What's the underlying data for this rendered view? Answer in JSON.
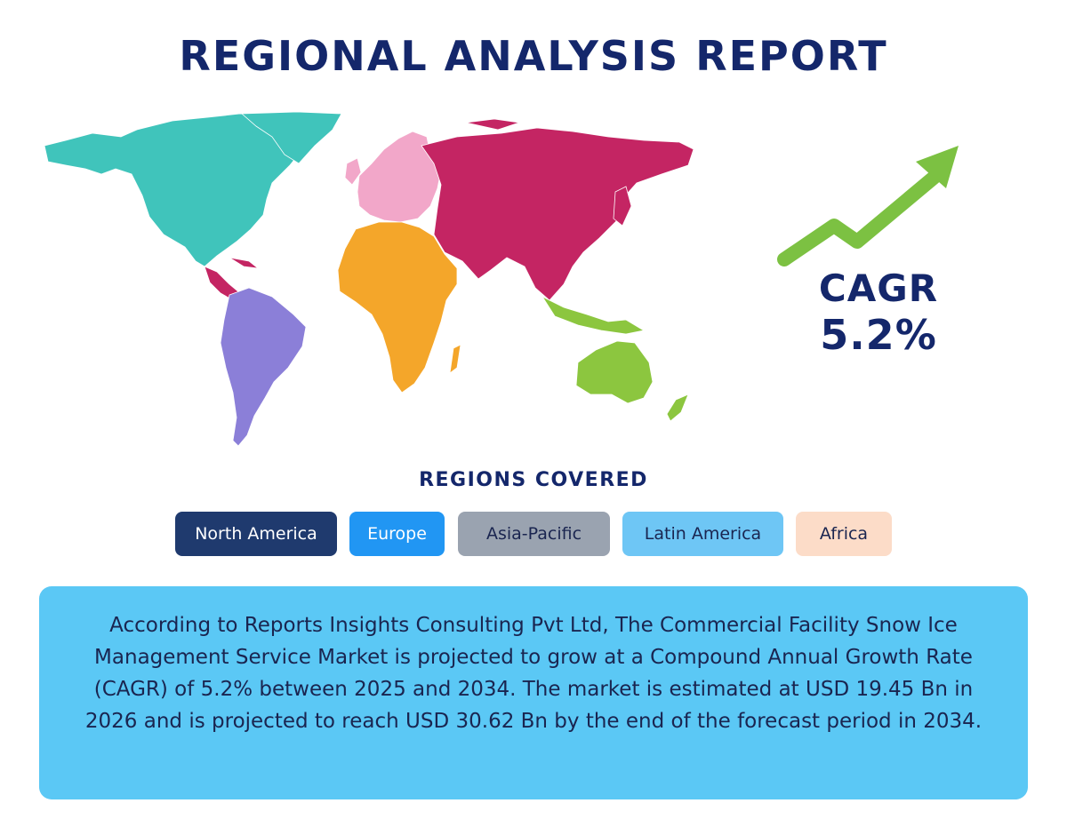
{
  "title": "REGIONAL ANALYSIS REPORT",
  "map": {
    "colors": {
      "north_america": "#40c4bb",
      "europe": "#f2a7c9",
      "asia": "#c42563",
      "africa": "#f4a62a",
      "latin_america": "#8b7fd8",
      "oceania": "#8cc63f"
    }
  },
  "cagr": {
    "label": "CAGR",
    "value": "5.2%",
    "arrow_color": "#7cc142"
  },
  "regions": {
    "heading": "REGIONS COVERED",
    "items": [
      {
        "label": "North America",
        "bg": "#1f3a6e",
        "fg": "#ffffff"
      },
      {
        "label": "Europe",
        "bg": "#2196f3",
        "fg": "#ffffff"
      },
      {
        "label": "Asia-Pacific",
        "bg": "#9aa3b0",
        "fg": "#1a2550"
      },
      {
        "label": "Latin America",
        "bg": "#6ec6f5",
        "fg": "#1a2550"
      },
      {
        "label": "Africa",
        "bg": "#fcdcc8",
        "fg": "#1a2550"
      }
    ]
  },
  "summary": {
    "bg": "#5bc8f5",
    "text": "According to Reports Insights Consulting Pvt Ltd, The Commercial Facility Snow Ice Management Service Market is projected to grow at a Compound Annual Growth Rate (CAGR) of 5.2% between 2025 and 2034. The market is estimated at USD 19.45 Bn in 2026 and is projected to reach USD 30.62 Bn by the end of the forecast period in 2034."
  }
}
